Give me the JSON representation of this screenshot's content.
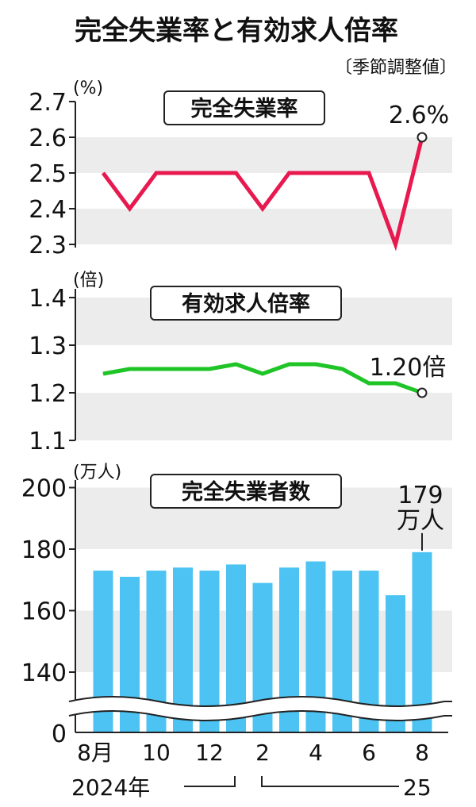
{
  "title": "完全失業率と有効求人倍率",
  "note": "〔季節調整値〕",
  "x_axis": {
    "tick_labels": [
      "8月",
      "10",
      "12",
      "2",
      "4",
      "6",
      "8"
    ],
    "year_labels": [
      "2024年",
      "25"
    ]
  },
  "colors": {
    "unemployment_line": "#e8194f",
    "ratio_line": "#1fc426",
    "bars": "#4cc3f2",
    "band": "#ececec"
  },
  "chart_data": [
    {
      "type": "line",
      "title": "完全失業率",
      "unit": "(%)",
      "x": [
        "2024-08",
        "2024-09",
        "2024-10",
        "2024-11",
        "2024-12",
        "2025-01",
        "2025-02",
        "2025-03",
        "2025-04",
        "2025-05",
        "2025-06",
        "2025-07",
        "2025-08"
      ],
      "values": [
        2.5,
        2.4,
        2.5,
        2.5,
        2.5,
        2.5,
        2.4,
        2.5,
        2.5,
        2.5,
        2.5,
        2.3,
        2.6
      ],
      "ylim": [
        2.3,
        2.7
      ],
      "yticks": [
        "2.3",
        "2.4",
        "2.5",
        "2.6",
        "2.7"
      ],
      "callout": "2.6%",
      "grid": "alternating bands"
    },
    {
      "type": "line",
      "title": "有効求人倍率",
      "unit": "(倍)",
      "x": [
        "2024-08",
        "2024-09",
        "2024-10",
        "2024-11",
        "2024-12",
        "2025-01",
        "2025-02",
        "2025-03",
        "2025-04",
        "2025-05",
        "2025-06",
        "2025-07",
        "2025-08"
      ],
      "values": [
        1.24,
        1.25,
        1.25,
        1.25,
        1.25,
        1.26,
        1.24,
        1.26,
        1.26,
        1.25,
        1.22,
        1.22,
        1.2
      ],
      "ylim": [
        1.1,
        1.4
      ],
      "yticks": [
        "1.1",
        "1.2",
        "1.3",
        "1.4"
      ],
      "callout": "1.20倍",
      "grid": "alternating bands"
    },
    {
      "type": "bar",
      "title": "完全失業者数",
      "unit": "(万人)",
      "x": [
        "2024-08",
        "2024-09",
        "2024-10",
        "2024-11",
        "2024-12",
        "2025-01",
        "2025-02",
        "2025-03",
        "2025-04",
        "2025-05",
        "2025-06",
        "2025-07",
        "2025-08"
      ],
      "values": [
        173,
        171,
        173,
        174,
        173,
        175,
        169,
        174,
        176,
        173,
        173,
        165,
        179
      ],
      "ylim": [
        130,
        200
      ],
      "yticks": [
        "0",
        "140",
        "160",
        "180",
        "200"
      ],
      "axis_break": "between 0 and 140",
      "callout": [
        "179",
        "万人"
      ],
      "grid": "alternating bands"
    }
  ]
}
